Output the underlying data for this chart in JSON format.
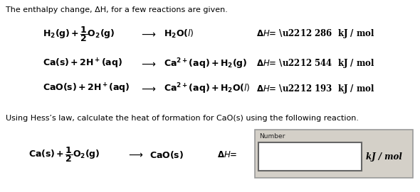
{
  "background_color": "#ffffff",
  "box_outer_color": "#d4d0c8",
  "box_inner_color": "#ffffff",
  "title_text": "The enthalpy change, ΔH, for a few reactions are given.",
  "hess_text": "Using Hess’s law, calculate the heat of formation for CaO(s) using the following reaction.",
  "number_label": "Number",
  "kj_mol": "kJ / mol",
  "dh1": "ΔH= − 286  kJ / mol",
  "dh2": "ΔH= − 544  kJ / mol",
  "dh3": "ΔH= − 193  kJ / mol",
  "dh4": "ΔH="
}
